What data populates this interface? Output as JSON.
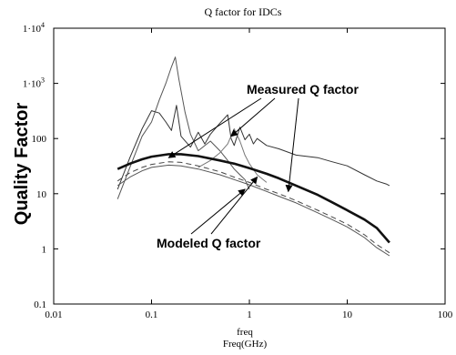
{
  "chart_data": {
    "type": "line",
    "title": "Q factor for IDCs",
    "xlabel_lines": [
      "freq",
      "Freq(GHz)"
    ],
    "ylabel": "Quality Factor",
    "x_scale": "log",
    "y_scale": "log",
    "xlim": [
      0.01,
      100
    ],
    "ylim": [
      0.1,
      10000
    ],
    "x_ticks": [
      {
        "value": 0.01,
        "label": "0.01"
      },
      {
        "value": 0.1,
        "label": "0.1"
      },
      {
        "value": 1,
        "label": "1"
      },
      {
        "value": 10,
        "label": "10"
      },
      {
        "value": 100,
        "label": "100"
      }
    ],
    "y_ticks": [
      {
        "value": 0.1,
        "base": "0.1",
        "exp": ""
      },
      {
        "value": 1,
        "base": "1",
        "exp": ""
      },
      {
        "value": 10,
        "base": "10",
        "exp": ""
      },
      {
        "value": 100,
        "base": "100",
        "exp": ""
      },
      {
        "value": 1000,
        "base": "1·10",
        "exp": "3"
      },
      {
        "value": 10000,
        "base": "1·10",
        "exp": "4"
      }
    ],
    "grid": false,
    "annotations": [
      {
        "text": "Measured Q factor"
      },
      {
        "text": "Modeled Q factor"
      }
    ],
    "series": [
      {
        "group": "measured",
        "color": "#333333",
        "width": 1,
        "points": [
          [
            0.045,
            12
          ],
          [
            0.06,
            45
          ],
          [
            0.08,
            150
          ],
          [
            0.1,
            320
          ],
          [
            0.12,
            290
          ],
          [
            0.14,
            200
          ],
          [
            0.16,
            140
          ],
          [
            0.18,
            400
          ],
          [
            0.2,
            110
          ],
          [
            0.25,
            70
          ],
          [
            0.3,
            130
          ],
          [
            0.35,
            80
          ],
          [
            0.4,
            120
          ],
          [
            0.5,
            190
          ],
          [
            0.6,
            270
          ],
          [
            0.65,
            100
          ],
          [
            0.7,
            75
          ],
          [
            0.8,
            160
          ],
          [
            0.9,
            95
          ],
          [
            1.0,
            120
          ],
          [
            1.1,
            80
          ],
          [
            1.2,
            100
          ],
          [
            1.5,
            75
          ],
          [
            2,
            65
          ],
          [
            3,
            50
          ],
          [
            5,
            45
          ],
          [
            7,
            38
          ],
          [
            10,
            32
          ],
          [
            15,
            22
          ],
          [
            20,
            17
          ],
          [
            25,
            15
          ],
          [
            27,
            14
          ]
        ]
      },
      {
        "group": "measured",
        "color": "#555555",
        "width": 1,
        "points": [
          [
            0.045,
            8
          ],
          [
            0.06,
            30
          ],
          [
            0.08,
            110
          ],
          [
            0.1,
            200
          ],
          [
            0.12,
            500
          ],
          [
            0.14,
            1000
          ],
          [
            0.16,
            2000
          ],
          [
            0.175,
            3000
          ],
          [
            0.19,
            1200
          ],
          [
            0.22,
            300
          ],
          [
            0.25,
            120
          ],
          [
            0.3,
            60
          ],
          [
            0.4,
            90
          ],
          [
            0.5,
            60
          ],
          [
            0.6,
            40
          ],
          [
            0.7,
            28
          ],
          [
            0.8,
            22
          ],
          [
            0.9,
            18
          ],
          [
            1.0,
            12
          ]
        ]
      },
      {
        "group": "measured",
        "color": "#777777",
        "width": 1,
        "points": [
          [
            0.3,
            30
          ],
          [
            0.4,
            40
          ],
          [
            0.5,
            55
          ],
          [
            0.6,
            80
          ],
          [
            0.7,
            150
          ],
          [
            0.8,
            90
          ],
          [
            0.9,
            50
          ],
          [
            1.0,
            35
          ],
          [
            1.2,
            22
          ],
          [
            1.5,
            16
          ]
        ]
      },
      {
        "group": "modeled",
        "color": "#111111",
        "width": 2.6,
        "points": [
          [
            0.045,
            28
          ],
          [
            0.06,
            35
          ],
          [
            0.08,
            42
          ],
          [
            0.1,
            47
          ],
          [
            0.15,
            52
          ],
          [
            0.2,
            52
          ],
          [
            0.3,
            48
          ],
          [
            0.5,
            40
          ],
          [
            0.7,
            35
          ],
          [
            1,
            29
          ],
          [
            1.5,
            23
          ],
          [
            2,
            19
          ],
          [
            3,
            14
          ],
          [
            5,
            9.5
          ],
          [
            7,
            7
          ],
          [
            10,
            5
          ],
          [
            15,
            3.4
          ],
          [
            20,
            2.4
          ],
          [
            27,
            1.3
          ]
        ]
      },
      {
        "group": "modeled",
        "color": "#444444",
        "width": 1,
        "dash": "6,4",
        "points": [
          [
            0.045,
            17
          ],
          [
            0.06,
            24
          ],
          [
            0.08,
            30
          ],
          [
            0.1,
            34
          ],
          [
            0.15,
            38
          ],
          [
            0.2,
            37
          ],
          [
            0.3,
            32
          ],
          [
            0.5,
            25
          ],
          [
            0.7,
            20
          ],
          [
            1,
            16
          ],
          [
            1.5,
            12
          ],
          [
            2,
            10
          ],
          [
            3,
            7.5
          ],
          [
            5,
            5
          ],
          [
            7,
            3.8
          ],
          [
            10,
            2.8
          ],
          [
            15,
            1.8
          ],
          [
            20,
            1.2
          ],
          [
            27,
            0.85
          ]
        ]
      },
      {
        "group": "modeled",
        "color": "#555555",
        "width": 1,
        "points": [
          [
            0.045,
            14
          ],
          [
            0.06,
            20
          ],
          [
            0.08,
            26
          ],
          [
            0.1,
            30
          ],
          [
            0.15,
            33
          ],
          [
            0.2,
            32
          ],
          [
            0.3,
            28
          ],
          [
            0.5,
            22
          ],
          [
            0.7,
            18
          ],
          [
            1,
            14.5
          ],
          [
            1.5,
            11
          ],
          [
            2,
            9
          ],
          [
            3,
            6.8
          ],
          [
            5,
            4.5
          ],
          [
            7,
            3.4
          ],
          [
            10,
            2.5
          ],
          [
            15,
            1.6
          ],
          [
            20,
            1.05
          ],
          [
            27,
            0.75
          ]
        ]
      }
    ]
  }
}
